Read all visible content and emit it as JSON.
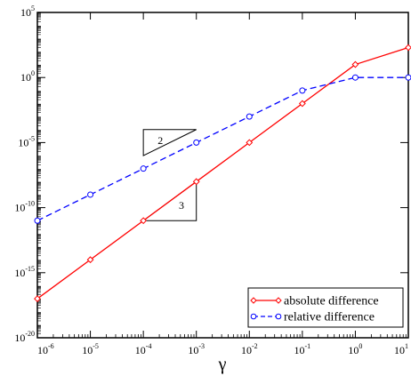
{
  "chart_data": {
    "type": "line",
    "xlabel": "γ",
    "ylabel": "",
    "x_scale": "log",
    "y_scale": "log",
    "xlim": [
      1e-06,
      10
    ],
    "ylim": [
      1e-20,
      100000.0
    ],
    "x_ticks": [
      {
        "value": 1e-06,
        "base": "10",
        "exp": "-6"
      },
      {
        "value": 1e-05,
        "base": "10",
        "exp": "-5"
      },
      {
        "value": 0.0001,
        "base": "10",
        "exp": "-4"
      },
      {
        "value": 0.001,
        "base": "10",
        "exp": "-3"
      },
      {
        "value": 0.01,
        "base": "10",
        "exp": "-2"
      },
      {
        "value": 0.1,
        "base": "10",
        "exp": "-1"
      },
      {
        "value": 1,
        "base": "10",
        "exp": "0"
      },
      {
        "value": 10,
        "base": "10",
        "exp": "1"
      }
    ],
    "y_ticks": [
      {
        "value": 1e-20,
        "base": "10",
        "exp": "-20"
      },
      {
        "value": 1e-15,
        "base": "10",
        "exp": "-15"
      },
      {
        "value": 1e-10,
        "base": "10",
        "exp": "-10"
      },
      {
        "value": 1e-05,
        "base": "10",
        "exp": "-5"
      },
      {
        "value": 1,
        "base": "10",
        "exp": "0"
      },
      {
        "value": 100000.0,
        "base": "10",
        "exp": "5"
      }
    ],
    "series": [
      {
        "name": "absolute difference",
        "color": "#ff0000",
        "line_style": "solid",
        "marker": "diamond",
        "x": [
          1e-06,
          1e-05,
          0.0001,
          0.001,
          0.01,
          0.1,
          1,
          10
        ],
        "y": [
          1e-17,
          1e-14,
          1e-11,
          1e-08,
          1e-05,
          0.01,
          10,
          200
        ]
      },
      {
        "name": "relative difference",
        "color": "#0000ff",
        "line_style": "dashed",
        "marker": "circle",
        "x": [
          1e-06,
          1e-05,
          0.0001,
          0.001,
          0.01,
          0.1,
          1,
          10
        ],
        "y": [
          1e-11,
          1e-09,
          1e-07,
          1e-05,
          0.001,
          0.1,
          1,
          1
        ]
      }
    ],
    "slope_annotations": [
      {
        "label": "2",
        "x_left": 0.0001,
        "x_right": 0.001,
        "y_low": 1e-06,
        "y_high": 0.0001
      },
      {
        "label": "3",
        "x_left": 0.0001,
        "x_right": 0.001,
        "y_low": 1e-11,
        "y_high": 1e-08
      }
    ],
    "legend": {
      "placement": "bottom-right"
    },
    "grid": false
  }
}
